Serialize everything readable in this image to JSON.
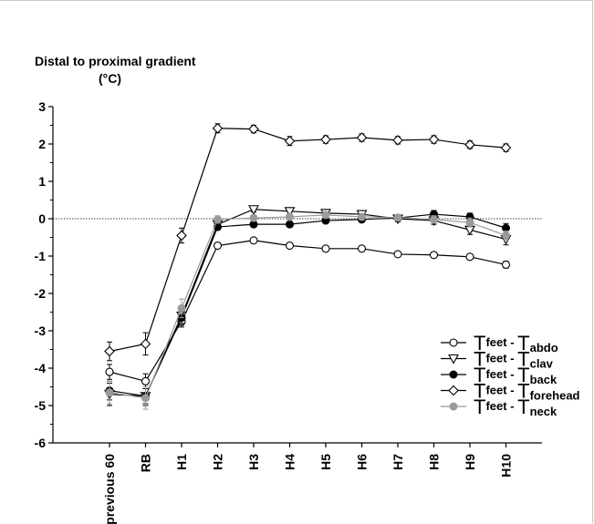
{
  "chart_data": {
    "type": "line",
    "title": "Distal to proximal gradient",
    "ylabel_unit": "(°C)",
    "categories": [
      "previous 60",
      "RB",
      "H1",
      "H2",
      "H3",
      "H4",
      "H5",
      "H6",
      "H7",
      "H8",
      "H9",
      "H10"
    ],
    "ylim": [
      -6,
      3
    ],
    "yticks": [
      "3",
      "2",
      "1",
      "0",
      "-1",
      "-2",
      "-3",
      "-4",
      "-5",
      "-6"
    ],
    "reference_line": 0,
    "legend_position": "lower-right",
    "series": [
      {
        "legend_main": "T",
        "sub1": "feet",
        "sep": "-",
        "legend_main2": "T",
        "sub2": "abdo",
        "marker": "circle-open",
        "color": "#000000",
        "values": [
          -4.1,
          -4.35,
          -2.75,
          -0.72,
          -0.58,
          -0.72,
          -0.8,
          -0.8,
          -0.95,
          -0.97,
          -1.02,
          -1.23
        ],
        "err": [
          0.2,
          0.2,
          0.15,
          0.07,
          0.05,
          0.07,
          0.06,
          0.07,
          0.06,
          0.05,
          0.07,
          0.09
        ]
      },
      {
        "legend_main": "T",
        "sub1": "feet",
        "sep": "-",
        "legend_main2": "T",
        "sub2": "clav",
        "marker": "triangle-down-open",
        "color": "#000000",
        "values": [
          -4.7,
          -4.75,
          -2.6,
          -0.15,
          0.25,
          0.2,
          0.15,
          0.12,
          0.0,
          -0.05,
          -0.3,
          -0.55
        ],
        "err": [
          0.3,
          0.25,
          0.2,
          0.1,
          0.07,
          0.08,
          0.08,
          0.08,
          0.08,
          0.1,
          0.12,
          0.15
        ]
      },
      {
        "legend_main": "T",
        "sub1": "feet",
        "sep": "-",
        "legend_main2": "T",
        "sub2": "back",
        "marker": "circle-filled",
        "color": "#000000",
        "values": [
          -4.6,
          -4.75,
          -2.65,
          -0.22,
          -0.15,
          -0.15,
          -0.05,
          -0.02,
          0.02,
          0.12,
          0.05,
          -0.25
        ],
        "err": [
          0.25,
          0.2,
          0.2,
          0.08,
          0.07,
          0.07,
          0.07,
          0.07,
          0.08,
          0.1,
          0.1,
          0.12
        ]
      },
      {
        "legend_main": "T",
        "sub1": "feet",
        "sep": "-",
        "legend_main2": "T",
        "sub2": "forehead",
        "marker": "diamond-open",
        "color": "#000000",
        "values": [
          -3.55,
          -3.35,
          -0.45,
          2.42,
          2.4,
          2.08,
          2.12,
          2.17,
          2.1,
          2.12,
          1.98,
          1.9
        ],
        "err": [
          0.25,
          0.3,
          0.2,
          0.12,
          0.1,
          0.12,
          0.1,
          0.1,
          0.1,
          0.1,
          0.1,
          0.1
        ]
      },
      {
        "legend_main": "T",
        "sub1": "feet",
        "sep": "-",
        "legend_main2": "T",
        "sub2": "neck",
        "marker": "circle-filled-gray",
        "color": "#9a9a9a",
        "values": [
          -4.65,
          -4.8,
          -2.4,
          -0.02,
          0.02,
          0.05,
          0.1,
          0.05,
          0.03,
          -0.02,
          -0.1,
          -0.45
        ],
        "err": [
          0.3,
          0.3,
          0.25,
          0.1,
          0.08,
          0.08,
          0.08,
          0.08,
          0.08,
          0.1,
          0.12,
          0.12
        ]
      }
    ]
  }
}
